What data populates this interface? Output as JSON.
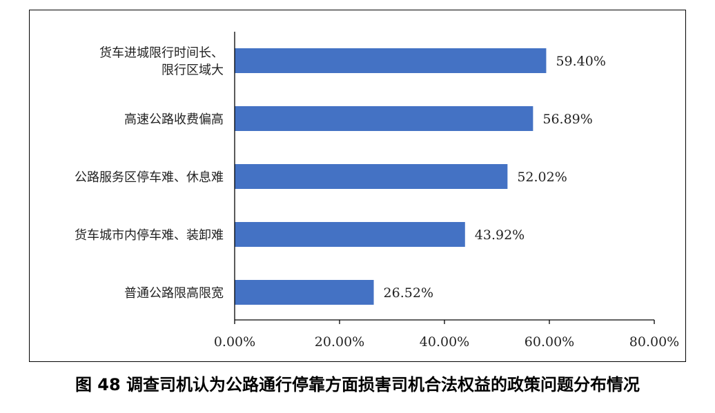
{
  "caption": "图 48  调查司机认为公路通行停靠方面损害司机合法权益的政策问题分布情况",
  "colors": {
    "bar": "#4472C4",
    "axis": "#000000",
    "text": "#222222"
  },
  "chart_data": {
    "type": "bar",
    "orientation": "horizontal",
    "categories": [
      [
        "货车进城限行时间长、",
        "限行区域大"
      ],
      [
        "高速公路收费偏高"
      ],
      [
        "公路服务区停车难、休息难"
      ],
      [
        "货车城市内停车难、装卸难"
      ],
      [
        "普通公路限高限宽"
      ]
    ],
    "values": [
      59.4,
      56.89,
      52.02,
      43.92,
      26.52
    ],
    "value_labels": [
      "59.40%",
      "56.89%",
      "52.02%",
      "43.92%",
      "26.52%"
    ],
    "xlim": [
      0,
      80
    ],
    "xticks": [
      0,
      20,
      40,
      60,
      80
    ],
    "xtick_labels": [
      "0.00%",
      "20.00%",
      "40.00%",
      "60.00%",
      "80.00%"
    ],
    "grid": false,
    "legend": "none"
  }
}
